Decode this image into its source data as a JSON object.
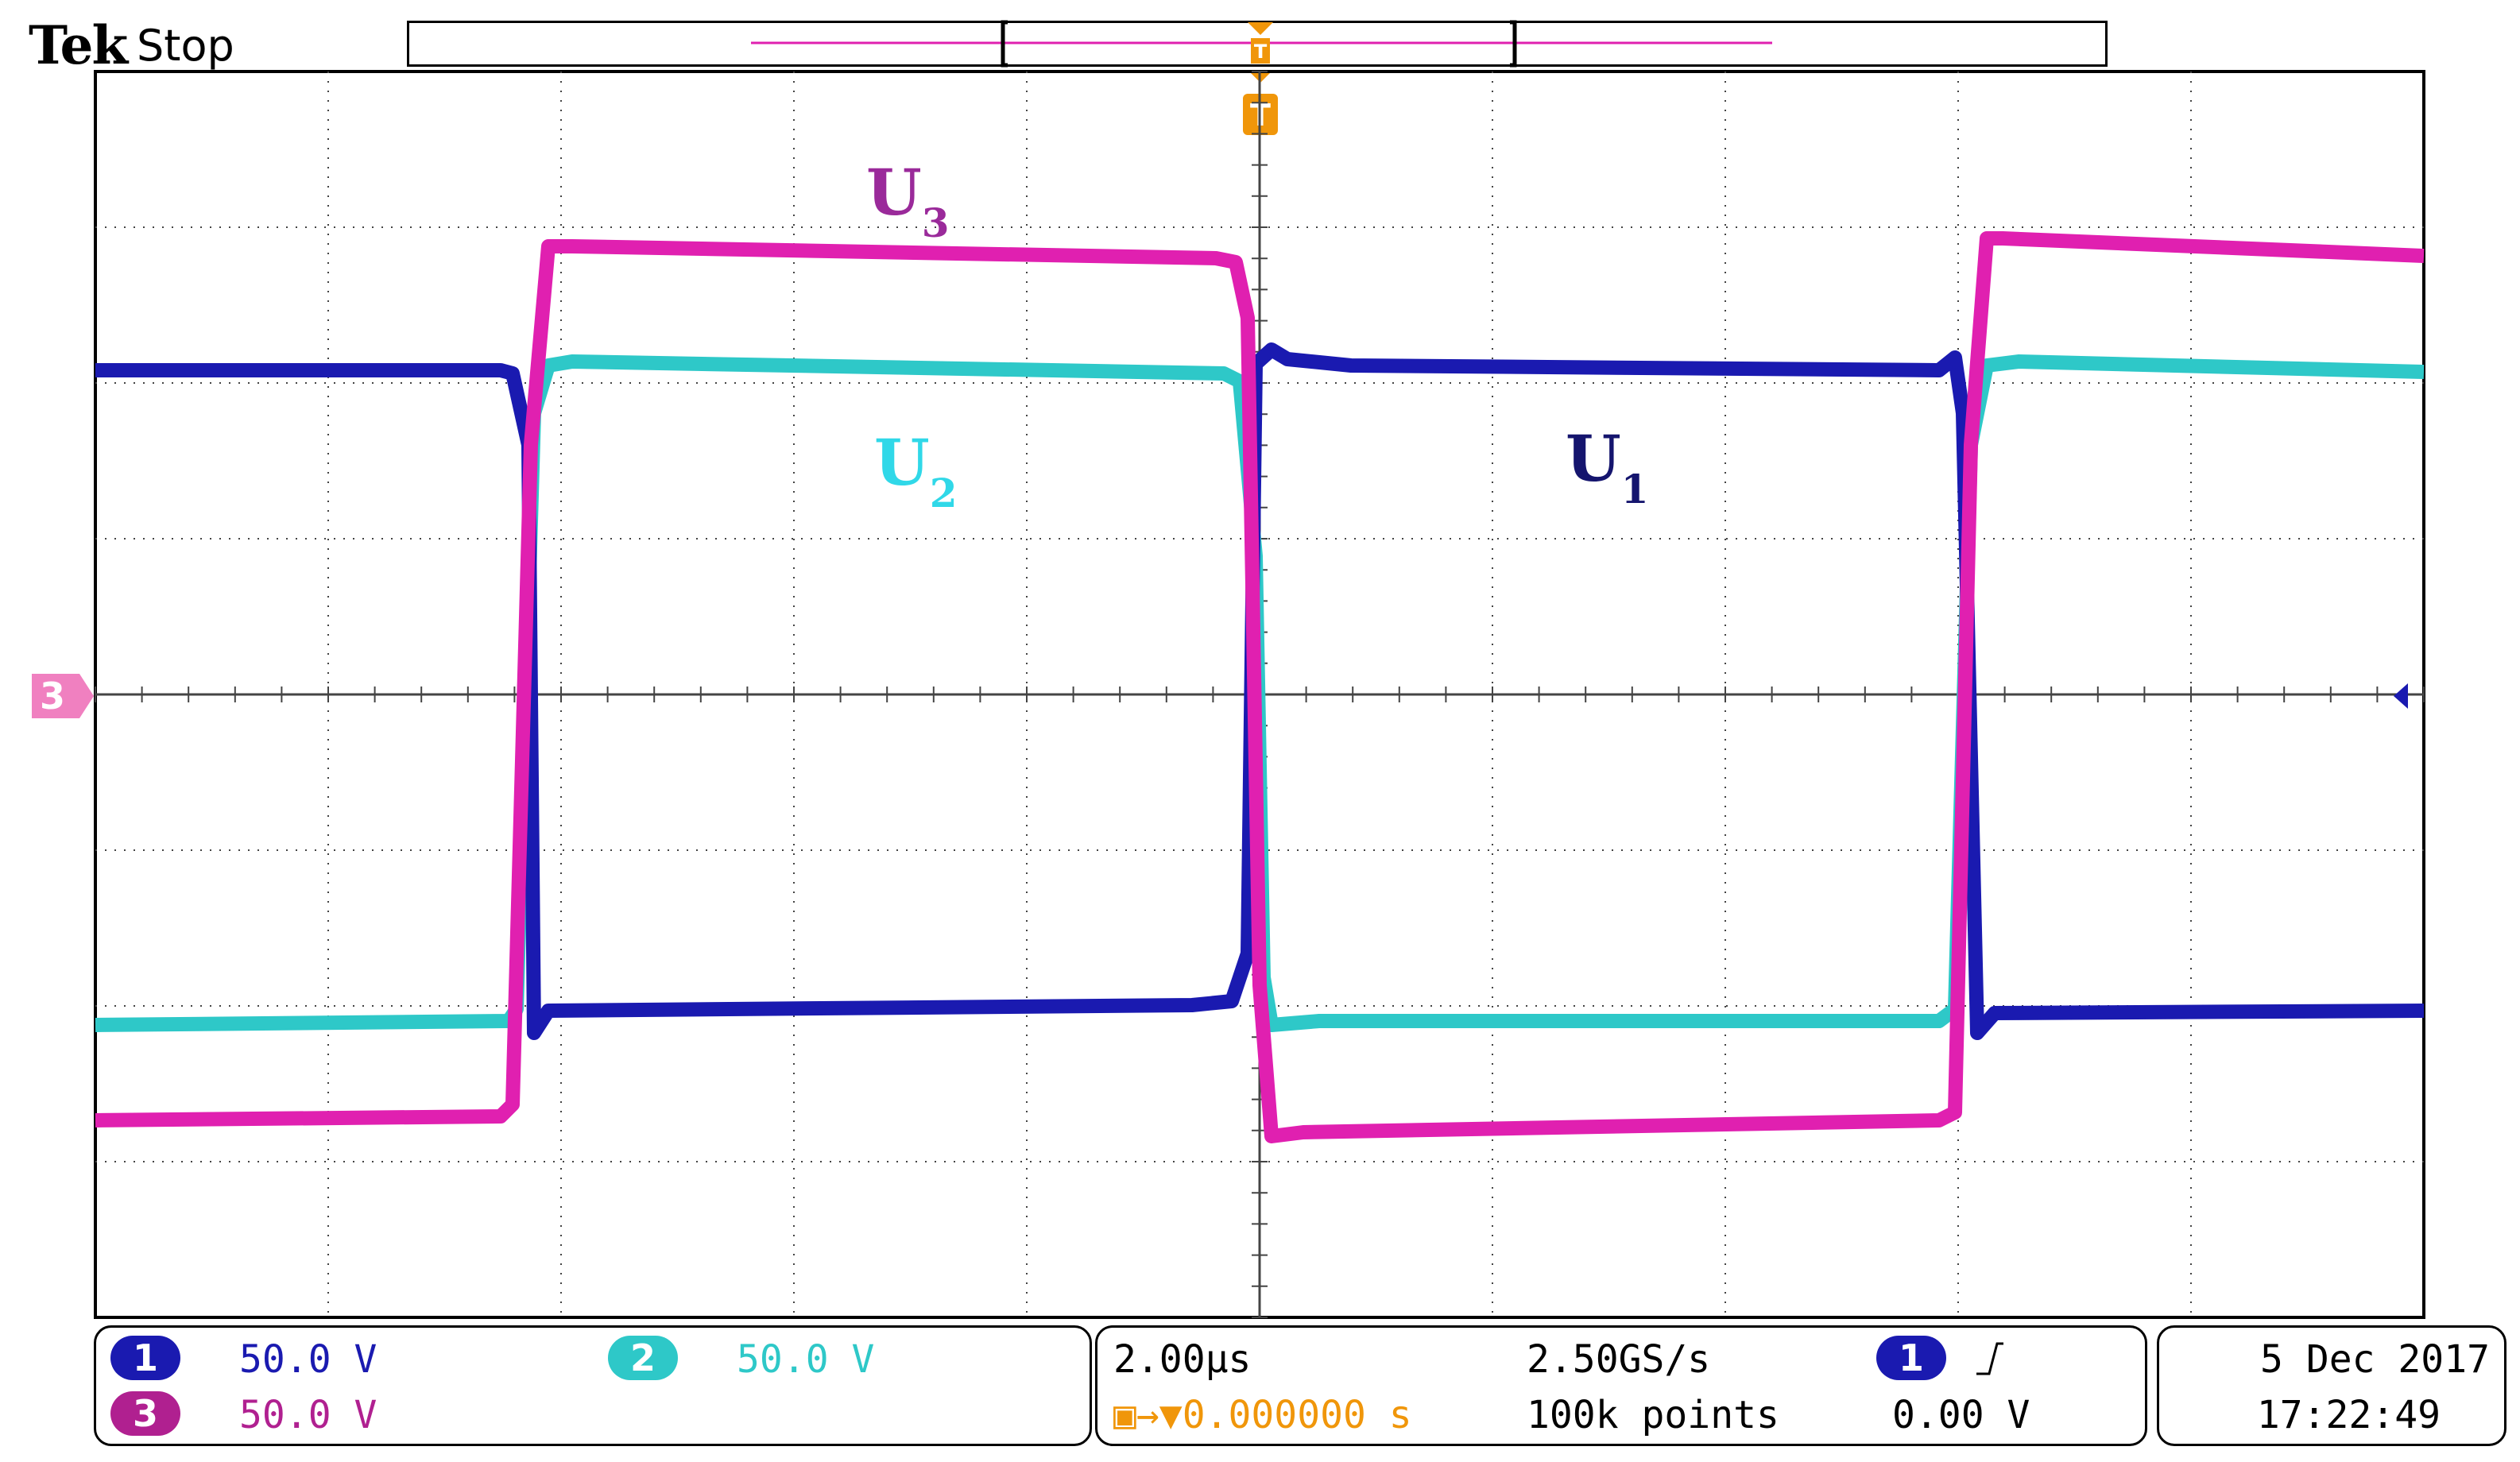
{
  "header": {
    "brand": "Tek",
    "acquisition_state": "Stop"
  },
  "trigger_marker": "T",
  "ref_marker": "3",
  "colors": {
    "ch1": "#1a1ab0",
    "ch2": "#2ec8c8",
    "ch3": "#e020b0",
    "trigger": "#f0960a",
    "ref": "#f080c0",
    "label_u3": "#9a2a9a",
    "label_u2": "#30d8e8",
    "label_u1": "#15156e"
  },
  "wave_labels": {
    "u3": {
      "main": "U",
      "sub": "3"
    },
    "u2": {
      "main": "U",
      "sub": "2"
    },
    "u1": {
      "main": "U",
      "sub": "1"
    }
  },
  "channels": [
    {
      "id": "1",
      "scale": "50.0 V"
    },
    {
      "id": "2",
      "scale": "50.0 V"
    },
    {
      "id": "3",
      "scale": "50.0 V"
    }
  ],
  "timebase": {
    "scale": "2.00µs",
    "trigger_position": "0.000000 s",
    "sample_rate": "2.50GS/s",
    "record_length": "100k points",
    "trigger_source": "1",
    "trigger_slope_icon": "rising-edge-icon",
    "trigger_level": "0.00 V"
  },
  "datetime": {
    "date": "5 Dec  2017",
    "time": "17:22:49"
  }
}
